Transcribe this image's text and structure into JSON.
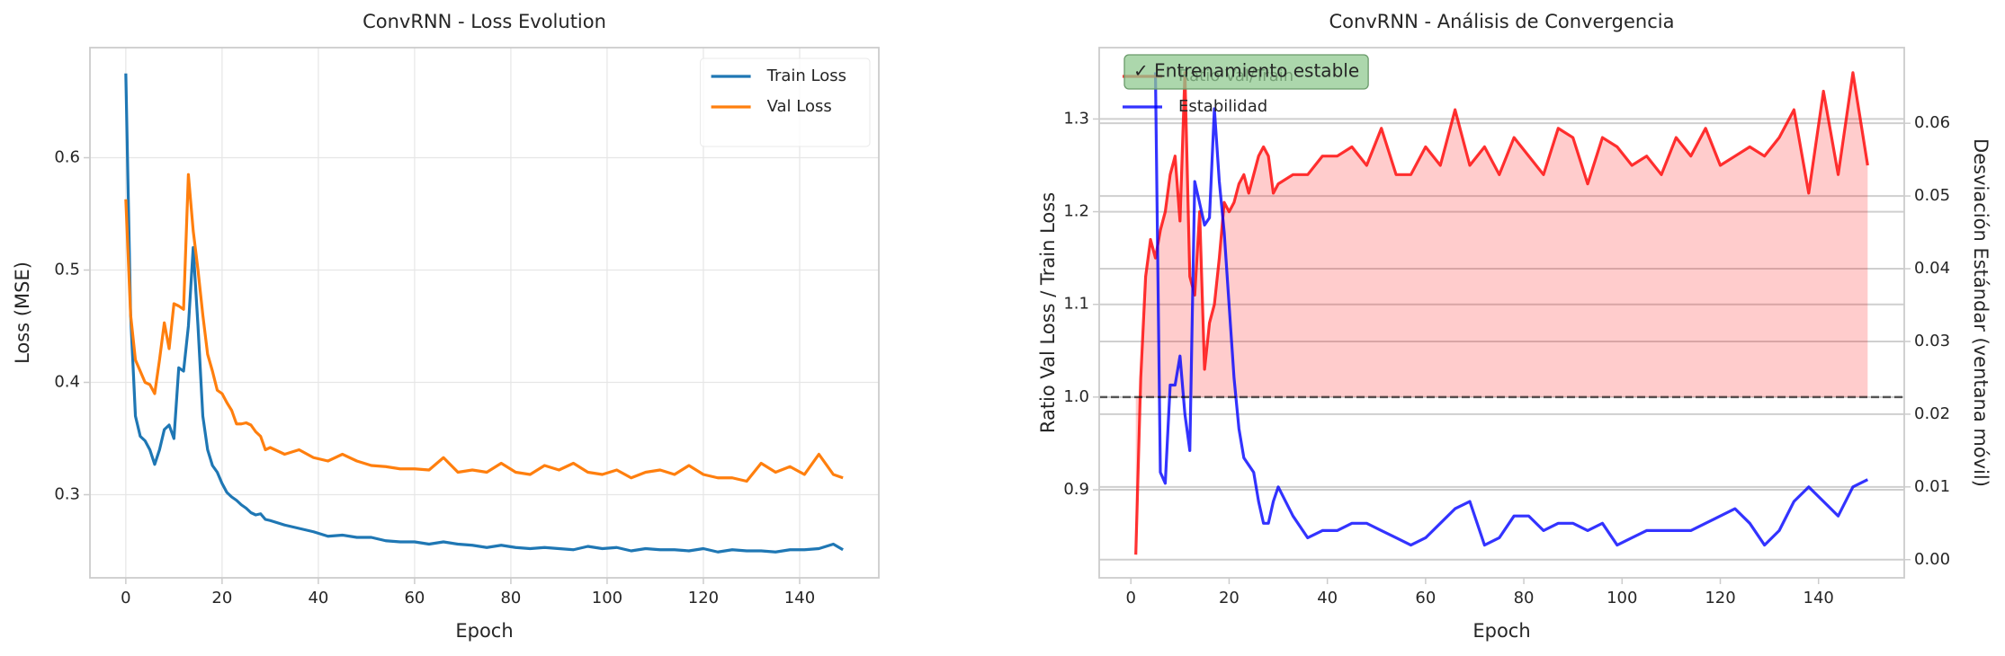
{
  "chart_data": [
    {
      "type": "line",
      "title": "ConvRNN - Loss Evolution",
      "xlabel": "Epoch",
      "ylabel": "Loss (MSE)",
      "x": [
        0,
        1,
        2,
        3,
        4,
        5,
        6,
        7,
        8,
        9,
        10,
        11,
        12,
        13,
        14,
        15,
        16,
        17,
        18,
        19,
        20,
        21,
        22,
        23,
        24,
        25,
        26,
        27,
        28,
        29,
        30,
        33,
        36,
        39,
        42,
        45,
        48,
        51,
        54,
        57,
        60,
        63,
        66,
        69,
        72,
        75,
        78,
        81,
        84,
        87,
        90,
        93,
        96,
        99,
        102,
        105,
        108,
        111,
        114,
        117,
        120,
        123,
        126,
        129,
        132,
        135,
        138,
        141,
        144,
        147,
        149
      ],
      "series": [
        {
          "name": "Train Loss",
          "color": "#1f77b4",
          "values": [
            0.675,
            0.46,
            0.37,
            0.352,
            0.348,
            0.34,
            0.327,
            0.34,
            0.358,
            0.362,
            0.35,
            0.413,
            0.41,
            0.45,
            0.52,
            0.45,
            0.37,
            0.34,
            0.326,
            0.32,
            0.31,
            0.302,
            0.298,
            0.295,
            0.291,
            0.288,
            0.284,
            0.282,
            0.283,
            0.278,
            0.277,
            0.273,
            0.27,
            0.267,
            0.263,
            0.264,
            0.262,
            0.262,
            0.259,
            0.258,
            0.258,
            0.256,
            0.258,
            0.256,
            0.255,
            0.253,
            0.255,
            0.253,
            0.252,
            0.253,
            0.252,
            0.251,
            0.254,
            0.252,
            0.253,
            0.25,
            0.252,
            0.251,
            0.251,
            0.25,
            0.252,
            0.249,
            0.251,
            0.25,
            0.25,
            0.249,
            0.251,
            0.251,
            0.252,
            0.256,
            0.251
          ]
        },
        {
          "name": "Val Loss",
          "color": "#ff7f0e",
          "values": [
            0.563,
            0.46,
            0.42,
            0.41,
            0.4,
            0.398,
            0.39,
            0.42,
            0.453,
            0.43,
            0.47,
            0.468,
            0.465,
            0.585,
            0.535,
            0.5,
            0.46,
            0.425,
            0.41,
            0.393,
            0.39,
            0.382,
            0.375,
            0.363,
            0.363,
            0.364,
            0.362,
            0.356,
            0.352,
            0.34,
            0.342,
            0.336,
            0.34,
            0.333,
            0.33,
            0.336,
            0.33,
            0.326,
            0.325,
            0.323,
            0.323,
            0.322,
            0.333,
            0.32,
            0.322,
            0.32,
            0.328,
            0.32,
            0.318,
            0.326,
            0.322,
            0.328,
            0.32,
            0.318,
            0.322,
            0.315,
            0.32,
            0.322,
            0.318,
            0.326,
            0.318,
            0.315,
            0.315,
            0.312,
            0.328,
            0.32,
            0.325,
            0.318,
            0.336,
            0.318,
            0.315
          ]
        }
      ],
      "xlim": [
        -7.45,
        156.45
      ],
      "xticks": [
        0,
        20,
        40,
        60,
        80,
        100,
        120,
        140
      ],
      "ylim": [
        0.226,
        0.698
      ],
      "yticks": [
        0.3,
        0.4,
        0.5,
        0.6
      ],
      "grid": [
        "x",
        "y"
      ],
      "legend": "upper right"
    },
    {
      "type": "line",
      "title": "ConvRNN - Análisis de Convergencia",
      "xlabel": "Epoch",
      "ylabel": "Ratio Val Loss / Train Loss",
      "y2label": "Desviación Estándar (ventana móvil)",
      "annotation": "✓ Entrenamiento estable",
      "hline": 1,
      "x": [
        1,
        2,
        3,
        4,
        5,
        6,
        7,
        8,
        9,
        10,
        11,
        12,
        13,
        14,
        15,
        16,
        17,
        18,
        19,
        20,
        21,
        22,
        23,
        24,
        25,
        26,
        27,
        28,
        29,
        30,
        33,
        36,
        39,
        42,
        45,
        48,
        51,
        54,
        57,
        60,
        63,
        66,
        69,
        72,
        75,
        78,
        81,
        84,
        87,
        90,
        93,
        96,
        99,
        102,
        105,
        108,
        111,
        114,
        117,
        120,
        123,
        126,
        129,
        132,
        135,
        138,
        141,
        144,
        147,
        150
      ],
      "series": [
        {
          "name": "Ratio Val/Train",
          "color": "red",
          "fill": true,
          "values": [
            0.83,
            1.02,
            1.13,
            1.17,
            1.15,
            1.18,
            1.2,
            1.24,
            1.26,
            1.19,
            1.35,
            1.13,
            1.11,
            1.2,
            1.03,
            1.08,
            1.1,
            1.15,
            1.21,
            1.2,
            1.21,
            1.23,
            1.24,
            1.22,
            1.24,
            1.26,
            1.27,
            1.26,
            1.22,
            1.23,
            1.24,
            1.24,
            1.26,
            1.26,
            1.27,
            1.25,
            1.29,
            1.24,
            1.24,
            1.27,
            1.25,
            1.31,
            1.25,
            1.27,
            1.24,
            1.28,
            1.26,
            1.24,
            1.29,
            1.28,
            1.23,
            1.28,
            1.27,
            1.25,
            1.26,
            1.24,
            1.28,
            1.26,
            1.29,
            1.25,
            1.26,
            1.27,
            1.26,
            1.28,
            1.31,
            1.22,
            1.33,
            1.24,
            1.35,
            1.25
          ]
        },
        {
          "name": "Estabilidad",
          "color": "blue",
          "axis": "y2",
          "values": [
            null,
            null,
            null,
            null,
            0.067,
            0.012,
            0.0105,
            0.024,
            0.024,
            0.028,
            0.02,
            0.015,
            0.052,
            0.049,
            0.046,
            0.047,
            0.062,
            0.052,
            0.045,
            0.035,
            0.025,
            0.018,
            0.014,
            0.013,
            0.012,
            0.008,
            0.005,
            0.005,
            0.008,
            0.01,
            0.006,
            0.003,
            0.004,
            0.004,
            0.005,
            0.005,
            0.004,
            0.003,
            0.002,
            0.003,
            0.005,
            0.007,
            0.008,
            0.002,
            0.003,
            0.006,
            0.006,
            0.004,
            0.005,
            0.005,
            0.004,
            0.005,
            0.002,
            0.003,
            0.004,
            0.004,
            0.004,
            0.004,
            0.005,
            0.006,
            0.007,
            0.005,
            0.002,
            0.004,
            0.008,
            0.01,
            0.008,
            0.006,
            0.01,
            0.011
          ]
        }
      ],
      "xlim": [
        -6.45,
        157.45
      ],
      "xticks": [
        0,
        20,
        40,
        60,
        80,
        100,
        120,
        140
      ],
      "ylim": [
        0.805,
        1.377
      ],
      "yticks": [
        0.9,
        {
          "value": 1,
          "label": "1.0"
        },
        1.1,
        1.2,
        1.3
      ],
      "y2lim": [
        -0.0025,
        0.0704
      ],
      "y2ticks": [
        {
          "value": 0,
          "label": "0.00"
        },
        0.01,
        0.02,
        0.03,
        0.04,
        0.05,
        0.06
      ],
      "grid": [
        "y",
        "y2"
      ],
      "legend": "upper left"
    }
  ]
}
